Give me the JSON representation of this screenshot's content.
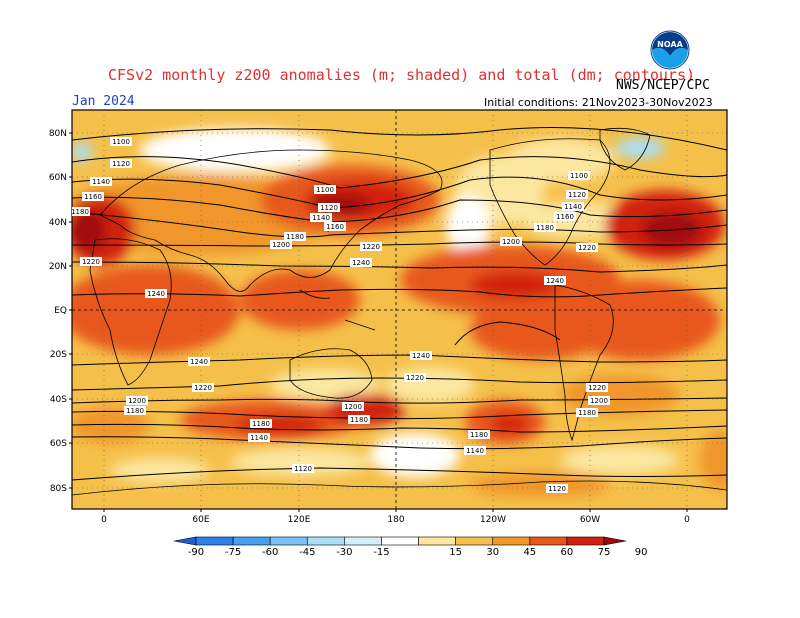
{
  "header": {
    "title": "CFSv2 monthly z200 anomalies (m; shaded) and total (dm; contours)",
    "month": "Jan 2024",
    "agency": "NWS/NCEP/CPC",
    "initial_conditions": "Initial conditions: 21Nov2023-30Nov2023",
    "logo_text": "NOAA"
  },
  "axes": {
    "lat_labels": [
      "80N",
      "60N",
      "40N",
      "20N",
      "EQ",
      "20S",
      "40S",
      "60S",
      "80S"
    ],
    "lon_labels": [
      "0",
      "60E",
      "120E",
      "180",
      "120W",
      "60W",
      "0"
    ]
  },
  "contour_labels": [
    "1100",
    "1120",
    "1140",
    "1160",
    "1180",
    "1200",
    "1220",
    "1240"
  ],
  "colorbar": {
    "ticks": [
      "-90",
      "-75",
      "-60",
      "-45",
      "-30",
      "-15",
      "15",
      "30",
      "45",
      "60",
      "75",
      "90"
    ],
    "colors": [
      "#1f5fd0",
      "#2f80e8",
      "#4aa0f0",
      "#78c2f5",
      "#a8def8",
      "#d2f0fa",
      "#ffffff",
      "#fbe7a0",
      "#f5c04a",
      "#f0962a",
      "#e8581a",
      "#d22010",
      "#a00808"
    ]
  },
  "chart_data": {
    "type": "heatmap",
    "title": "CFSv2 monthly z200 anomalies (m; shaded) and total (dm; contours)",
    "valid_month": "Jan 2024",
    "initial_conditions": "21Nov2023-30Nov2023",
    "units_shaded": "m",
    "units_contours": "dm",
    "shading_levels": [
      -90,
      -75,
      -60,
      -45,
      -30,
      -15,
      15,
      30,
      45,
      60,
      75,
      90
    ],
    "contour_levels": [
      1100,
      1120,
      1140,
      1160,
      1180,
      1200,
      1220,
      1240
    ],
    "lat_range": [
      -90,
      90
    ],
    "lon_range": [
      -20,
      380
    ]
  }
}
